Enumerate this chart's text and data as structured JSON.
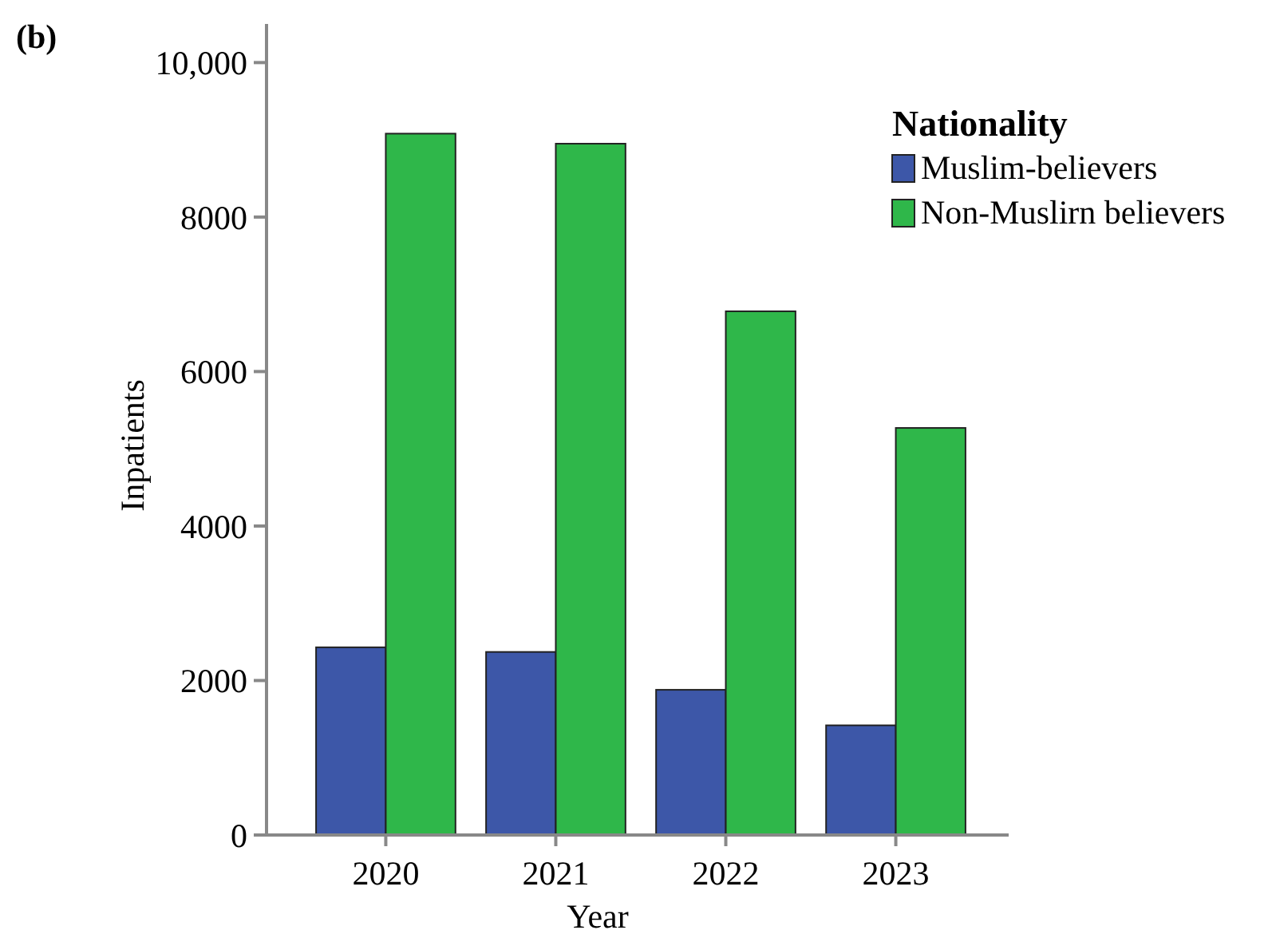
{
  "chart_data": {
    "type": "bar",
    "xlabel": "Year",
    "ylabel": "Inpatients",
    "legend_title": "Nationality",
    "annotations": [
      "(b)"
    ],
    "categories": [
      "2020",
      "2021",
      "2022",
      "2023"
    ],
    "series": [
      {
        "name": "Muslim-believers",
        "color": "#3d57a8",
        "values": [
          2430,
          2370,
          1880,
          1420
        ]
      },
      {
        "name": "Non-Muslirn believers",
        "color": "#2fb74a",
        "values": [
          9080,
          8950,
          6780,
          5270
        ]
      }
    ],
    "ylim": [
      0,
      10500
    ],
    "yticks": [
      0,
      2000,
      4000,
      6000,
      {
        "value": 8000,
        "label": "8000"
      },
      {
        "value": 10000,
        "label": "10,000"
      }
    ],
    "grid": false,
    "legend": "top right"
  }
}
